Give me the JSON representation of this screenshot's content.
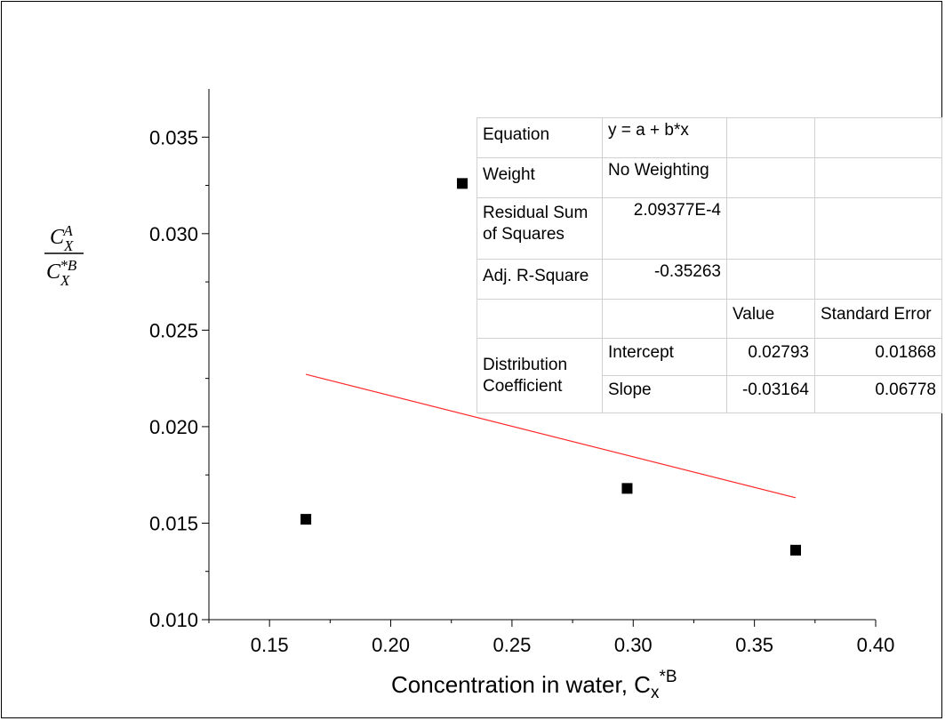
{
  "chart_data": {
    "type": "scatter",
    "xlabel": "Concentration in water, Cx*B",
    "xlabel_main": "Concentration in water, C",
    "xlabel_sub": "x",
    "xlabel_sup": "*B",
    "ylabel_numerator": {
      "base": "C",
      "sub": "X",
      "sup": "A"
    },
    "ylabel_denominator": {
      "base": "C",
      "sub": "X",
      "sup": "*B"
    },
    "xlim": [
      0.125,
      0.4
    ],
    "ylim": [
      0.01,
      0.0375
    ],
    "x_ticks": [
      "0.15",
      "0.20",
      "0.25",
      "0.30",
      "0.35",
      "0.40"
    ],
    "y_ticks": [
      "0.010",
      "0.015",
      "0.020",
      "0.025",
      "0.030",
      "0.035"
    ],
    "series": [
      {
        "points": [
          {
            "x": 0.165,
            "y": 0.0152
          },
          {
            "x": 0.2295,
            "y": 0.0326
          },
          {
            "x": 0.2975,
            "y": 0.0168
          },
          {
            "x": 0.367,
            "y": 0.0136
          }
        ],
        "color": "#000000",
        "marker": "square"
      }
    ],
    "fit_line": {
      "intercept": 0.02793,
      "slope": -0.03164,
      "x_range": [
        0.165,
        0.367
      ],
      "color": "#ff2a2a"
    },
    "grid": false
  },
  "fit_table": {
    "equation_label": "Equation",
    "equation_value": "y = a + b*x",
    "weight_label": "Weight",
    "weight_value": "No Weighting",
    "rss_label_1": "Residual Sum",
    "rss_label_2": "of Squares",
    "rss_value": "2.09377E-4",
    "adj_label": "Adj. R-Square",
    "adj_value": "-0.35263",
    "col_value": "Value",
    "col_stderr": "Standard Error",
    "group_label_1": "Distribution",
    "group_label_2": "Coefficient",
    "intercept_label": "Intercept",
    "intercept_value": "0.02793",
    "intercept_stderr": "0.01868",
    "slope_label": "Slope",
    "slope_value": "-0.03164",
    "slope_stderr": "0.06778"
  }
}
